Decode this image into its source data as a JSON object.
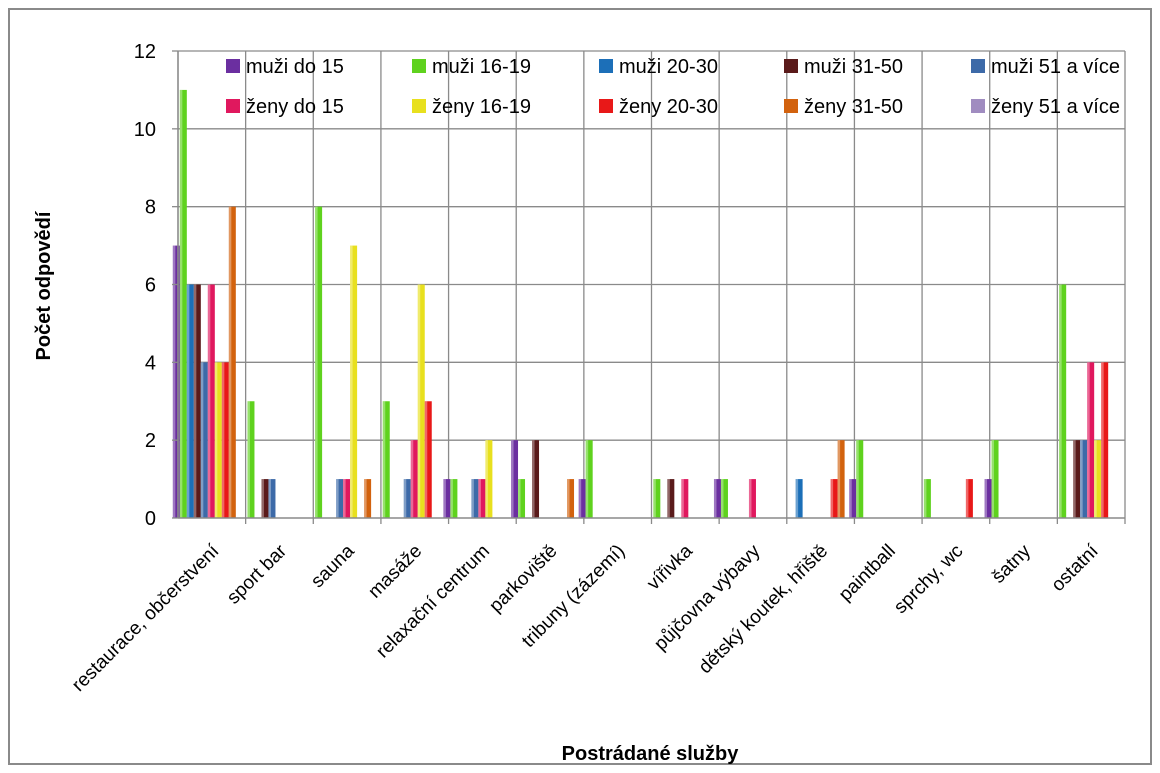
{
  "chart_data": {
    "type": "bar",
    "xlabel": "Postrádané služby",
    "ylabel": "Počet odpovědí",
    "ylim": [
      0,
      12
    ],
    "yticks": [
      0,
      2,
      4,
      6,
      8,
      10,
      12
    ],
    "grid": true,
    "legend_position": "top-right",
    "categories": [
      "restaurace, občerstvení",
      "sport bar",
      "sauna",
      "masáže",
      "relaxační centrum",
      "parkoviště",
      "tribuny (zázemí)",
      "vířivka",
      "půjčovna výbavy",
      "dětský koutek, hřiště",
      "paintball",
      "sprchy, wc",
      "šatny",
      "ostatní"
    ],
    "series": [
      {
        "name": "muži do 15",
        "color": "#6b2fa0",
        "values": [
          7,
          0,
          0,
          0,
          1,
          2,
          1,
          0,
          1,
          0,
          1,
          0,
          1,
          0
        ]
      },
      {
        "name": "muži 16-19",
        "color": "#5fd21e",
        "values": [
          11,
          3,
          8,
          3,
          1,
          1,
          2,
          1,
          1,
          0,
          2,
          1,
          2,
          6
        ]
      },
      {
        "name": "muži 20-30",
        "color": "#1c6fb8",
        "values": [
          6,
          0,
          0,
          0,
          0,
          0,
          0,
          0,
          0,
          1,
          0,
          0,
          0,
          0
        ]
      },
      {
        "name": "muži 31-50",
        "color": "#5a1a1a",
        "values": [
          6,
          1,
          0,
          0,
          0,
          2,
          0,
          1,
          0,
          0,
          0,
          0,
          0,
          2
        ]
      },
      {
        "name": "muži 51 a více",
        "color": "#3d6aa8",
        "values": [
          4,
          1,
          1,
          1,
          1,
          0,
          0,
          0,
          0,
          0,
          0,
          0,
          0,
          2
        ]
      },
      {
        "name": "ženy do 15",
        "color": "#e0185e",
        "values": [
          6,
          0,
          1,
          2,
          1,
          0,
          0,
          1,
          1,
          0,
          0,
          0,
          0,
          4
        ]
      },
      {
        "name": "ženy 16-19",
        "color": "#e8e01e",
        "values": [
          4,
          0,
          7,
          6,
          2,
          0,
          0,
          0,
          0,
          0,
          0,
          0,
          0,
          2
        ]
      },
      {
        "name": "ženy 20-30",
        "color": "#e81818",
        "values": [
          4,
          0,
          0,
          3,
          0,
          0,
          0,
          0,
          0,
          1,
          0,
          1,
          0,
          4
        ]
      },
      {
        "name": "ženy 31-50",
        "color": "#d2620e",
        "values": [
          8,
          0,
          1,
          0,
          0,
          1,
          0,
          0,
          0,
          2,
          0,
          0,
          0,
          0
        ]
      },
      {
        "name": "ženy 51 a více",
        "color": "#a08cc0",
        "values": [
          0,
          0,
          0,
          0,
          0,
          0,
          0,
          0,
          0,
          0,
          0,
          0,
          0,
          0
        ]
      }
    ]
  }
}
